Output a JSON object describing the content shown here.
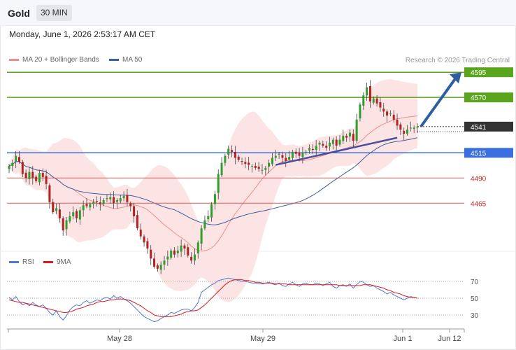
{
  "header": {
    "title": "Gold",
    "timeframe": "30 MIN"
  },
  "timestamp": "Monday, June 1, 2026 2:53:17 AM CET",
  "legend": {
    "ma20": {
      "label": "MA 20 + Bollinger Bands",
      "color": "#f08c8c"
    },
    "ma50": {
      "label": "MA 50",
      "color": "#3a5f9e"
    }
  },
  "copyright": "Research © 2026 Trading Central",
  "rsi_legend": {
    "rsi": {
      "label": "RSI",
      "color": "#4f77d8"
    },
    "ma9": {
      "label": "9MA",
      "color": "#e01818"
    }
  },
  "colors": {
    "up": "#2e9e2e",
    "down": "#b22222",
    "resistance": "#5aa41e",
    "pivot": "#3b6fe0",
    "support": "#e05a5a",
    "last": "#333333",
    "arrow": "#2e5e9e",
    "bands": "#fde1e1"
  },
  "chart_data": [
    {
      "type": "candlestick",
      "title": "Gold",
      "timeframe": "30 MIN",
      "x_tick_labels": [
        "May 28",
        "May 29",
        "Jun 1",
        "Jun 12"
      ],
      "price_range": [
        4420,
        4600
      ],
      "series": [
        {
          "name": "MA 20 + Bollinger Bands"
        },
        {
          "name": "MA 50"
        }
      ],
      "levels": [
        {
          "label": "4595",
          "value": 4595,
          "role": "resistance"
        },
        {
          "label": "4570",
          "value": 4570,
          "role": "resistance"
        },
        {
          "label": "4541",
          "value": 4541,
          "role": "last"
        },
        {
          "label": "4515",
          "value": 4515,
          "role": "pivot"
        },
        {
          "label": "4490",
          "value": 4490,
          "role": "support"
        },
        {
          "label": "4465",
          "value": 4465,
          "role": "support"
        }
      ],
      "closes": [
        4502,
        4505,
        4512,
        4506,
        4494,
        4490,
        4496,
        4490,
        4487,
        4495,
        4491,
        4484,
        4466,
        4456,
        4460,
        4450,
        4438,
        4448,
        4452,
        4456,
        4450,
        4458,
        4463,
        4462,
        4464,
        4466,
        4467,
        4464,
        4468,
        4470,
        4471,
        4465,
        4468,
        4470,
        4472,
        4466,
        4462,
        4452,
        4440,
        4432,
        4426,
        4420,
        4410,
        4402,
        4400,
        4404,
        4408,
        4412,
        4418,
        4414,
        4418,
        4423,
        4420,
        4413,
        4408,
        4414,
        4426,
        4440,
        4448,
        4452,
        4464,
        4474,
        4494,
        4505,
        4512,
        4519,
        4516,
        4510,
        4508,
        4506,
        4504,
        4503,
        4502,
        4500,
        4499,
        4498,
        4500,
        4505,
        4510,
        4512,
        4514,
        4510,
        4507,
        4511,
        4516,
        4514,
        4512,
        4515,
        4516,
        4520,
        4518,
        4522,
        4525,
        4522,
        4520,
        4525,
        4528,
        4522,
        4528,
        4532,
        4530,
        4535,
        4527,
        4548,
        4563,
        4572,
        4580,
        4566,
        4569,
        4564,
        4560,
        4556,
        4552,
        4554,
        4548,
        4542,
        4538,
        4534,
        4538,
        4540,
        4540,
        4541
      ]
    },
    {
      "type": "line",
      "title": "RSI",
      "series": [
        {
          "name": "RSI"
        },
        {
          "name": "9MA"
        }
      ],
      "y_ticks": [
        30,
        50,
        70
      ],
      "ylim": [
        20,
        80
      ],
      "rsi": [
        51,
        48,
        52,
        46,
        42,
        44,
        41,
        45,
        42,
        40,
        42,
        38,
        33,
        30,
        35,
        28,
        24,
        29,
        36,
        40,
        42,
        41,
        45,
        47,
        44,
        46,
        48,
        47,
        50,
        51,
        49,
        53,
        50,
        52,
        49,
        47,
        44,
        40,
        36,
        32,
        28,
        26,
        24,
        22,
        23,
        26,
        28,
        30,
        33,
        32,
        34,
        36,
        37,
        37,
        35,
        39,
        45,
        57,
        60,
        63,
        66,
        68,
        71,
        72,
        73,
        74,
        73,
        72,
        71,
        70,
        70,
        69,
        68,
        68,
        67,
        67,
        68,
        69,
        67,
        66,
        68,
        65,
        64,
        67,
        69,
        66,
        64,
        67,
        68,
        66,
        66,
        68,
        67,
        65,
        67,
        69,
        64,
        62,
        65,
        66,
        64,
        67,
        62,
        66,
        70,
        69,
        66,
        64,
        65,
        62,
        60,
        58,
        55,
        57,
        54,
        52,
        50,
        48,
        50,
        52,
        51,
        50
      ],
      "ma9": [
        48,
        47,
        46,
        45,
        45,
        44,
        43,
        42,
        41,
        40,
        39,
        38,
        37,
        36,
        35,
        34,
        33,
        33,
        34,
        35,
        37,
        38,
        39,
        41,
        42,
        43,
        45,
        46,
        46,
        47,
        48,
        48,
        49,
        49,
        49,
        48,
        47,
        45,
        43,
        41,
        38,
        35,
        33,
        30,
        29,
        28,
        28,
        28,
        28,
        29,
        30,
        31,
        33,
        34,
        35,
        35,
        36,
        39,
        42,
        46,
        50,
        54,
        58,
        62,
        66,
        69,
        71,
        72,
        72,
        72,
        71,
        71,
        70,
        69,
        69,
        68,
        68,
        68,
        68,
        67,
        67,
        67,
        67,
        66,
        66,
        66,
        66,
        66,
        66,
        66,
        66,
        66,
        66,
        66,
        66,
        66,
        66,
        66,
        65,
        65,
        65,
        65,
        65,
        65,
        65,
        66,
        66,
        66,
        65,
        64,
        63,
        62,
        60,
        59,
        57,
        56,
        55,
        53,
        52,
        51,
        51,
        50
      ]
    }
  ]
}
